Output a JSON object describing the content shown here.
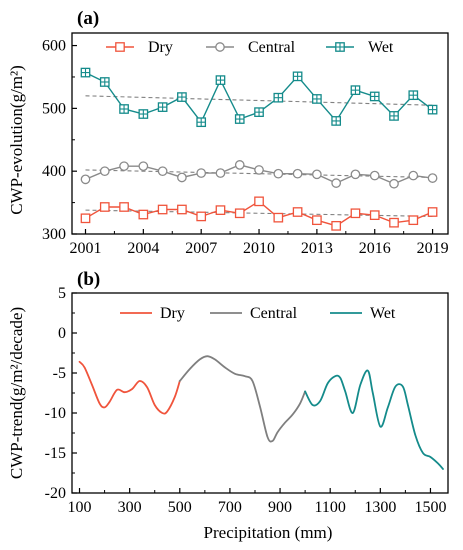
{
  "chart_data": [
    {
      "panel": "(a)",
      "type": "line",
      "xlabel": "",
      "ylabel": "CWP-evolution(g/m²)",
      "x": [
        2001,
        2002,
        2003,
        2004,
        2005,
        2006,
        2007,
        2008,
        2009,
        2010,
        2011,
        2012,
        2013,
        2014,
        2015,
        2016,
        2017,
        2018,
        2019
      ],
      "xlim": [
        2000.3,
        2019.8
      ],
      "ylim": [
        300,
        620
      ],
      "xticks": [
        2001,
        2004,
        2007,
        2010,
        2013,
        2016,
        2019
      ],
      "yticks": [
        300,
        400,
        500,
        600
      ],
      "legend": "top-center",
      "grid": false,
      "series": [
        {
          "name": "Dry",
          "color": "#f0543c",
          "marker": "square",
          "values": [
            325,
            343,
            343,
            331,
            339,
            339,
            328,
            338,
            333,
            352,
            326,
            335,
            322,
            313,
            333,
            330,
            318,
            322,
            335
          ],
          "trend": [
            338,
            328
          ]
        },
        {
          "name": "Central",
          "color": "#8a8a8a",
          "marker": "circle",
          "values": [
            387,
            400,
            408,
            408,
            400,
            390,
            397,
            397,
            410,
            402,
            396,
            396,
            395,
            381,
            395,
            393,
            380,
            393,
            389
          ],
          "trend": [
            402,
            390
          ]
        },
        {
          "name": "Wet",
          "color": "#148b8b",
          "marker": "square-cross",
          "values": [
            557,
            542,
            499,
            491,
            502,
            518,
            478,
            545,
            483,
            494,
            517,
            551,
            515,
            480,
            529,
            519,
            488,
            521,
            498
          ],
          "trend": [
            520,
            505
          ]
        }
      ]
    },
    {
      "panel": "(b)",
      "type": "line",
      "xlabel": "Precipitation (mm)",
      "ylabel": "CWP-trend(g/m²/decade)",
      "xlim": [
        70,
        1570
      ],
      "ylim": [
        -20,
        5
      ],
      "xticks": [
        100,
        300,
        500,
        700,
        900,
        1100,
        1300,
        1500
      ],
      "yticks": [
        5,
        0,
        -5,
        -10,
        -15,
        -20
      ],
      "legend": "top-center",
      "grid": false,
      "series": [
        {
          "name": "Dry",
          "color": "#f0543c",
          "x": [
            100,
            120,
            150,
            180,
            200,
            220,
            250,
            280,
            310,
            340,
            370,
            400,
            430,
            450,
            480,
            500
          ],
          "values": [
            -3.6,
            -4.3,
            -6.5,
            -8.8,
            -9.3,
            -8.6,
            -7.1,
            -7.4,
            -7.0,
            -6.0,
            -6.8,
            -9.0,
            -10.0,
            -9.8,
            -8.0,
            -6.0
          ]
        },
        {
          "name": "Central",
          "color": "#7f7f7f",
          "x": [
            500,
            540,
            580,
            610,
            640,
            680,
            720,
            760,
            790,
            820,
            850,
            870,
            890,
            920,
            950,
            980,
            1000
          ],
          "values": [
            -6.0,
            -4.5,
            -3.3,
            -2.9,
            -3.3,
            -4.3,
            -5.1,
            -5.4,
            -6.0,
            -9.2,
            -13.0,
            -13.5,
            -12.4,
            -11.2,
            -10.2,
            -8.8,
            -7.3
          ]
        },
        {
          "name": "Wet",
          "color": "#148b8b",
          "x": [
            1000,
            1030,
            1060,
            1090,
            1120,
            1140,
            1160,
            1190,
            1220,
            1250,
            1270,
            1300,
            1330,
            1360,
            1390,
            1410,
            1440,
            1470,
            1500,
            1530,
            1550
          ],
          "values": [
            -7.3,
            -9.0,
            -8.5,
            -6.3,
            -5.4,
            -5.6,
            -7.3,
            -10.0,
            -6.5,
            -4.7,
            -7.5,
            -11.7,
            -9.3,
            -6.7,
            -6.7,
            -9.0,
            -12.8,
            -15.0,
            -15.5,
            -16.3,
            -17.0
          ]
        }
      ]
    }
  ]
}
